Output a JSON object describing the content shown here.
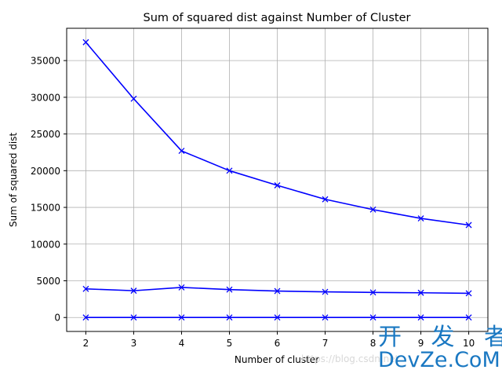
{
  "chart_data": {
    "type": "line",
    "title": "Sum of squared dist against Number of Cluster",
    "xlabel": "Number of cluster",
    "ylabel": "Sum of squared dist",
    "x": [
      2,
      3,
      4,
      5,
      6,
      7,
      8,
      9,
      10
    ],
    "x_tick_labels": [
      "2",
      "3",
      "4",
      "5",
      "6",
      "7",
      "8",
      "9",
      "10"
    ],
    "xlim": [
      1.6,
      10.4
    ],
    "ylim": [
      -1900,
      39400
    ],
    "y_ticks": [
      0,
      5000,
      10000,
      15000,
      20000,
      25000,
      30000,
      35000
    ],
    "y_tick_labels": [
      "0",
      "5000",
      "10000",
      "15000",
      "20000",
      "25000",
      "30000",
      "35000"
    ],
    "grid": true,
    "marker": "x",
    "series": [
      {
        "color": "#0000ff",
        "values": [
          37500,
          29800,
          22700,
          20000,
          18000,
          16100,
          14700,
          13500,
          12600
        ]
      },
      {
        "color": "#0000ff",
        "values": [
          3900,
          3650,
          4100,
          3800,
          3600,
          3500,
          3420,
          3370,
          3300
        ]
      },
      {
        "color": "#0000ff",
        "values": [
          10,
          9,
          9,
          8,
          8,
          7,
          7,
          6,
          6
        ]
      }
    ]
  },
  "watermark": {
    "brand_cn": "开 发 者",
    "brand_en": "DevZe.CoM",
    "url": "https://blog.csdn.net"
  }
}
